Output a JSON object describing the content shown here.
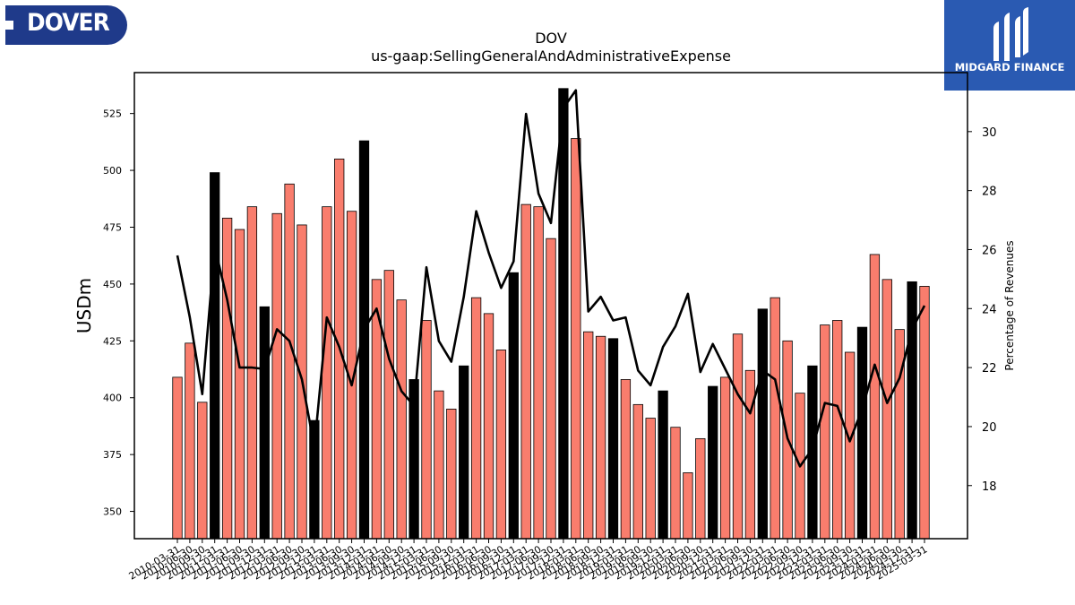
{
  "logos": {
    "left_text": "DOVER",
    "right_text": "MIDGARD FINANCE"
  },
  "colors": {
    "bar_regular": "#f97d6d",
    "bar_highlight": "#000000",
    "line": "#000000",
    "logo_left_bg": "#1f3a8a",
    "logo_right_bg": "#2a5ab2"
  },
  "chart_data": {
    "type": "bar",
    "title": "DOV",
    "subtitle": "us-gaap:SellingGeneralAndAdministrativeExpense",
    "ylabel": "USDm",
    "y2label": "Percentage of Revenues",
    "ylim": [
      338,
      543
    ],
    "y2lim": [
      16.2,
      32.0
    ],
    "yticks": [
      350,
      375,
      400,
      425,
      450,
      475,
      500,
      525
    ],
    "y2ticks": [
      18,
      20,
      22,
      24,
      26,
      28,
      30
    ],
    "categories": [
      "2010-03-31",
      "2010-06-30",
      "2010-09-30",
      "2010-12-31",
      "2011-03-31",
      "2011-06-30",
      "2011-09-30",
      "2011-12-31",
      "2012-03-31",
      "2012-06-30",
      "2012-09-30",
      "2012-12-31",
      "2013-03-31",
      "2013-06-30",
      "2013-09-30",
      "2013-12-31",
      "2014-03-31",
      "2014-06-30",
      "2014-09-30",
      "2014-12-31",
      "2015-03-31",
      "2015-06-30",
      "2015-09-30",
      "2015-12-31",
      "2016-03-31",
      "2016-06-30",
      "2016-09-30",
      "2016-12-31",
      "2017-03-31",
      "2017-06-30",
      "2017-09-30",
      "2017-12-31",
      "2018-03-31",
      "2018-06-30",
      "2018-09-30",
      "2018-12-31",
      "2019-03-31",
      "2019-06-30",
      "2019-09-30",
      "2019-12-31",
      "2020-03-31",
      "2020-06-30",
      "2020-09-30",
      "2020-12-31",
      "2021-03-31",
      "2021-06-30",
      "2021-09-30",
      "2021-12-31",
      "2022-03-31",
      "2022-06-30",
      "2022-09-30",
      "2022-12-31",
      "2023-03-31",
      "2023-06-30",
      "2023-09-30",
      "2023-12-31",
      "2024-03-31",
      "2024-06-30",
      "2024-09-30",
      "2024-12-31",
      "2025-03-31"
    ],
    "series": [
      {
        "kind": "bar",
        "axis": "left",
        "values": [
          409,
          424,
          398,
          499,
          479,
          474,
          484,
          440,
          481,
          494,
          476,
          390,
          484,
          505,
          482,
          513,
          452,
          456,
          443,
          408,
          434,
          403,
          395,
          414,
          444,
          437,
          421,
          455,
          485,
          484,
          470,
          536,
          514,
          429,
          427,
          426,
          408,
          397,
          391,
          403,
          387,
          367,
          382,
          405,
          409,
          428,
          412,
          439,
          444,
          425,
          402,
          414,
          432,
          434,
          420,
          431,
          463,
          452,
          430,
          451,
          449
        ],
        "highlight_every": 4,
        "highlight_offset": 3
      },
      {
        "kind": "line",
        "axis": "right",
        "values": [
          25.8,
          23.7,
          21.1,
          26.1,
          24.3,
          22.0,
          22.0,
          21.95,
          23.3,
          22.9,
          21.6,
          19.3,
          23.7,
          22.7,
          21.4,
          23.3,
          24.0,
          22.3,
          21.2,
          20.7,
          25.4,
          22.9,
          22.2,
          24.4,
          27.3,
          25.9,
          24.7,
          25.6,
          30.6,
          27.9,
          26.9,
          30.8,
          31.4,
          23.9,
          24.4,
          23.6,
          23.7,
          21.9,
          21.4,
          22.7,
          23.4,
          24.5,
          21.85,
          22.8,
          21.95,
          21.1,
          20.45,
          21.9,
          21.6,
          19.6,
          18.65,
          19.25,
          20.8,
          20.7,
          19.5,
          20.6,
          22.1,
          20.8,
          21.65,
          23.3,
          24.1
        ]
      }
    ],
    "grid": false,
    "legend": "none"
  }
}
